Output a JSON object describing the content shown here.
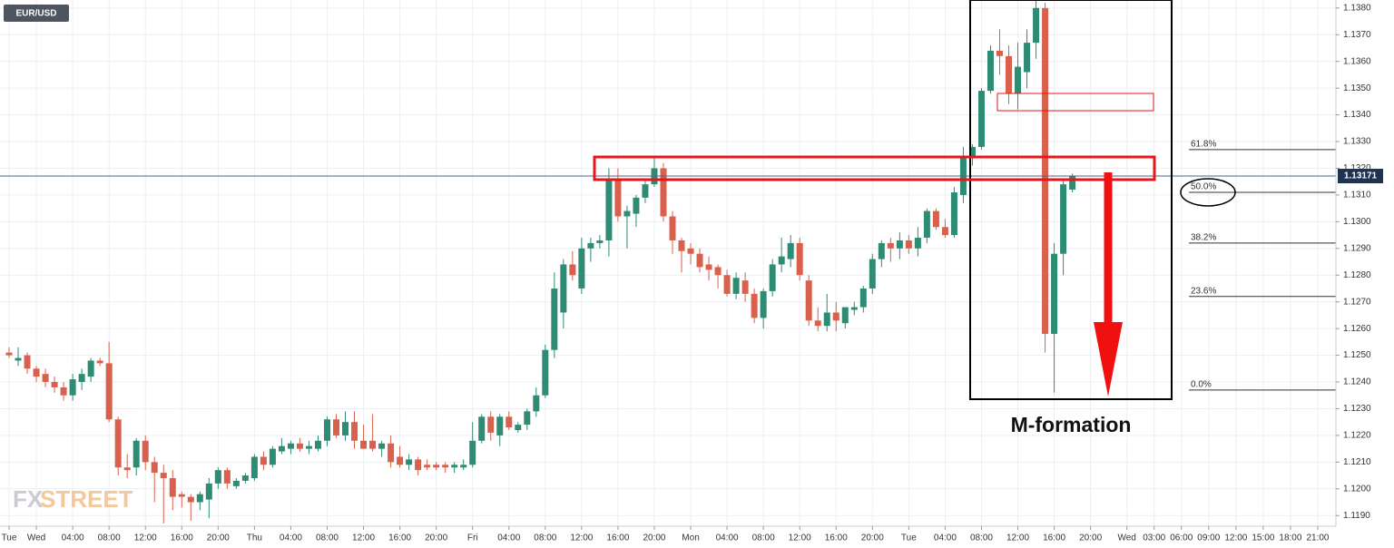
{
  "chart_data": {
    "type": "candlestick",
    "title": "EUR/USD",
    "annotation": "M-formation",
    "watermark_parts": [
      "FX",
      "STREET"
    ],
    "up_color": "#2e8b74",
    "down_color": "#d9604c",
    "grid": true,
    "x": [
      -3,
      -2,
      -1,
      0,
      1,
      2,
      3,
      4,
      5,
      6,
      7,
      8,
      9,
      10,
      11,
      12,
      13,
      14,
      15,
      16,
      17,
      18,
      19,
      20,
      21,
      22,
      23,
      24,
      25,
      26,
      27,
      28,
      29,
      30,
      31,
      32,
      33,
      34,
      35,
      36,
      37,
      38,
      39,
      40,
      41,
      42,
      43,
      44,
      45,
      46,
      47,
      48,
      49,
      50,
      51,
      52,
      53,
      54,
      55,
      56,
      57,
      58,
      59,
      60,
      61,
      62,
      63,
      64,
      65,
      66,
      67,
      68,
      69,
      70,
      71,
      72,
      73,
      74,
      75,
      76,
      77,
      78,
      79,
      80,
      81,
      82,
      83,
      84,
      85,
      86,
      87,
      88,
      89,
      90,
      91,
      92,
      93,
      94,
      95,
      96,
      97,
      98,
      99,
      100,
      101,
      102,
      103,
      104,
      105,
      106,
      107,
      108,
      109,
      110,
      111,
      112,
      113,
      114
    ],
    "open": [
      1.1251,
      1.1248,
      1.125,
      1.1245,
      1.1243,
      1.124,
      1.1238,
      1.1235,
      1.124,
      1.1242,
      1.1248,
      1.1247,
      1.1226,
      1.1208,
      1.1208,
      1.1218,
      1.121,
      1.1206,
      1.1204,
      1.1198,
      1.1197,
      1.1195,
      1.1196,
      1.1202,
      1.1207,
      1.1201,
      1.1203,
      1.1204,
      1.1212,
      1.1209,
      1.1214,
      1.1215,
      1.1217,
      1.1215,
      1.1215,
      1.1218,
      1.1226,
      1.122,
      1.1225,
      1.1218,
      1.1218,
      1.1215,
      1.1217,
      1.1212,
      1.1209,
      1.1211,
      1.1209,
      1.1209,
      1.1209,
      1.1208,
      1.1208,
      1.1209,
      1.1218,
      1.1227,
      1.122,
      1.1227,
      1.1222,
      1.1224,
      1.1229,
      1.1235,
      1.1252,
      1.1266,
      1.1284,
      1.1275,
      1.129,
      1.1292,
      1.1293,
      1.1316,
      1.1302,
      1.1303,
      1.1309,
      1.1314,
      1.132,
      1.1302,
      1.1293,
      1.129,
      1.1288,
      1.1284,
      1.1283,
      1.128,
      1.1273,
      1.1278,
      1.1273,
      1.1264,
      1.1274,
      1.1284,
      1.1286,
      1.1292,
      1.1278,
      1.1263,
      1.1261,
      1.1266,
      1.1262,
      1.1267,
      1.1268,
      1.1275,
      1.1286,
      1.1292,
      1.129,
      1.1293,
      1.129,
      1.1294,
      1.1304,
      1.1298,
      1.1295,
      1.131,
      1.1324,
      1.1328,
      1.1349,
      1.1364,
      1.1362,
      1.1348,
      1.1356,
      1.1367,
      1.138,
      1.1258,
      1.1288,
      1.1312
    ],
    "high": [
      1.1253,
      1.1253,
      1.1251,
      1.1246,
      1.1245,
      1.1242,
      1.124,
      1.1243,
      1.1245,
      1.1249,
      1.1249,
      1.1255,
      1.1227,
      1.1213,
      1.1219,
      1.122,
      1.1212,
      1.1209,
      1.1207,
      1.1199,
      1.1198,
      1.1199,
      1.1204,
      1.1208,
      1.1208,
      1.1204,
      1.1206,
      1.1213,
      1.1214,
      1.1216,
      1.1219,
      1.1218,
      1.1219,
      1.1218,
      1.122,
      1.1227,
      1.1228,
      1.1229,
      1.1229,
      1.1224,
      1.1228,
      1.1218,
      1.122,
      1.1216,
      1.1213,
      1.1212,
      1.1211,
      1.121,
      1.121,
      1.121,
      1.1211,
      1.1225,
      1.1228,
      1.1229,
      1.1228,
      1.1229,
      1.1225,
      1.123,
      1.1238,
      1.1254,
      1.1281,
      1.1286,
      1.1289,
      1.1294,
      1.1294,
      1.1295,
      1.132,
      1.132,
      1.1306,
      1.131,
      1.1316,
      1.1324,
      1.1322,
      1.1304,
      1.1294,
      1.1292,
      1.129,
      1.1287,
      1.1284,
      1.1282,
      1.1281,
      1.1281,
      1.1275,
      1.1275,
      1.1286,
      1.1294,
      1.1295,
      1.1294,
      1.128,
      1.1268,
      1.1273,
      1.127,
      1.1268,
      1.127,
      1.1276,
      1.1288,
      1.1293,
      1.1294,
      1.1296,
      1.1295,
      1.1298,
      1.1305,
      1.1305,
      1.1301,
      1.1313,
      1.1328,
      1.1329,
      1.135,
      1.1366,
      1.1372,
      1.1366,
      1.1367,
      1.1372,
      1.1383,
      1.1382,
      1.1292,
      1.1316,
      1.1318
    ],
    "low": [
      1.1249,
      1.1246,
      1.1243,
      1.124,
      1.1238,
      1.1236,
      1.1233,
      1.1233,
      1.1237,
      1.124,
      1.1246,
      1.1225,
      1.1205,
      1.1204,
      1.1205,
      1.1207,
      1.1195,
      1.1187,
      1.1192,
      1.1193,
      1.1188,
      1.1192,
      1.1189,
      1.12,
      1.12,
      1.12,
      1.1202,
      1.1203,
      1.1207,
      1.1208,
      1.1213,
      1.1213,
      1.1214,
      1.1213,
      1.1214,
      1.1216,
      1.1219,
      1.1218,
      1.1215,
      1.1215,
      1.1214,
      1.1212,
      1.1208,
      1.1208,
      1.1207,
      1.1205,
      1.1207,
      1.1207,
      1.1206,
      1.1206,
      1.1207,
      1.1208,
      1.1217,
      1.1218,
      1.1216,
      1.1222,
      1.1221,
      1.1222,
      1.1227,
      1.1234,
      1.1249,
      1.126,
      1.1278,
      1.1273,
      1.1285,
      1.129,
      1.1287,
      1.13,
      1.129,
      1.1298,
      1.1307,
      1.1313,
      1.13,
      1.1288,
      1.1281,
      1.1284,
      1.1281,
      1.1278,
      1.1275,
      1.1272,
      1.1271,
      1.127,
      1.1262,
      1.126,
      1.1272,
      1.1281,
      1.1283,
      1.1278,
      1.1261,
      1.1259,
      1.1259,
      1.1259,
      1.126,
      1.1265,
      1.1266,
      1.1273,
      1.1283,
      1.1285,
      1.1286,
      1.1288,
      1.1287,
      1.1292,
      1.1297,
      1.1294,
      1.1294,
      1.1307,
      1.1321,
      1.1327,
      1.1348,
      1.1355,
      1.1344,
      1.1342,
      1.135,
      1.1361,
      1.1251,
      1.1236,
      1.128,
      1.1311
    ],
    "close": [
      1.125,
      1.1249,
      1.1245,
      1.1242,
      1.124,
      1.1238,
      1.1235,
      1.1241,
      1.1243,
      1.1248,
      1.1247,
      1.1226,
      1.1208,
      1.1207,
      1.1218,
      1.121,
      1.1206,
      1.1204,
      1.1197,
      1.1197,
      1.1195,
      1.1198,
      1.1202,
      1.1207,
      1.1202,
      1.1203,
      1.1205,
      1.1212,
      1.1209,
      1.1215,
      1.1216,
      1.1217,
      1.1215,
      1.1216,
      1.1218,
      1.1226,
      1.122,
      1.1225,
      1.1218,
      1.1215,
      1.1215,
      1.1217,
      1.121,
      1.1209,
      1.1211,
      1.1207,
      1.1208,
      1.1208,
      1.1208,
      1.1209,
      1.1209,
      1.1218,
      1.1227,
      1.1221,
      1.1227,
      1.1223,
      1.1224,
      1.1229,
      1.1235,
      1.1252,
      1.1275,
      1.1284,
      1.128,
      1.129,
      1.1292,
      1.1293,
      1.1316,
      1.1302,
      1.1304,
      1.1309,
      1.1314,
      1.132,
      1.1302,
      1.1293,
      1.1289,
      1.1288,
      1.1283,
      1.1282,
      1.128,
      1.1273,
      1.1279,
      1.1273,
      1.1264,
      1.1274,
      1.1284,
      1.1287,
      1.1292,
      1.128,
      1.1263,
      1.1261,
      1.1266,
      1.1263,
      1.1268,
      1.1268,
      1.1275,
      1.1286,
      1.1292,
      1.129,
      1.1293,
      1.129,
      1.1294,
      1.1304,
      1.1298,
      1.1295,
      1.1311,
      1.1324,
      1.1328,
      1.1349,
      1.1364,
      1.1362,
      1.1348,
      1.1358,
      1.1367,
      1.138,
      1.1258,
      1.1288,
      1.1314,
      1.1317
    ],
    "xlim": [
      -4,
      143
    ],
    "xticks": [
      {
        "value": -3,
        "label": "Tue"
      },
      {
        "value": 0,
        "label": "Wed"
      },
      {
        "value": 4,
        "label": "04:00"
      },
      {
        "value": 8,
        "label": "08:00"
      },
      {
        "value": 12,
        "label": "12:00"
      },
      {
        "value": 16,
        "label": "16:00"
      },
      {
        "value": 20,
        "label": "20:00"
      },
      {
        "value": 24,
        "label": "Thu"
      },
      {
        "value": 28,
        "label": "04:00"
      },
      {
        "value": 32,
        "label": "08:00"
      },
      {
        "value": 36,
        "label": "12:00"
      },
      {
        "value": 40,
        "label": "16:00"
      },
      {
        "value": 44,
        "label": "20:00"
      },
      {
        "value": 48,
        "label": "Fri"
      },
      {
        "value": 52,
        "label": "04:00"
      },
      {
        "value": 56,
        "label": "08:00"
      },
      {
        "value": 60,
        "label": "12:00"
      },
      {
        "value": 64,
        "label": "16:00"
      },
      {
        "value": 68,
        "label": "20:00"
      },
      {
        "value": 72,
        "label": "Mon"
      },
      {
        "value": 76,
        "label": "04:00"
      },
      {
        "value": 80,
        "label": "08:00"
      },
      {
        "value": 84,
        "label": "12:00"
      },
      {
        "value": 88,
        "label": "16:00"
      },
      {
        "value": 92,
        "label": "20:00"
      },
      {
        "value": 96,
        "label": "Tue"
      },
      {
        "value": 100,
        "label": "04:00"
      },
      {
        "value": 104,
        "label": "08:00"
      },
      {
        "value": 108,
        "label": "12:00"
      },
      {
        "value": 112,
        "label": "16:00"
      },
      {
        "value": 116,
        "label": "20:00"
      },
      {
        "value": 120,
        "label": "Wed"
      },
      {
        "value": 123,
        "label": "03:00"
      },
      {
        "value": 126,
        "label": "06:00"
      },
      {
        "value": 129,
        "label": "09:00"
      },
      {
        "value": 132,
        "label": "12:00"
      },
      {
        "value": 135,
        "label": "15:00"
      },
      {
        "value": 138,
        "label": "18:00"
      },
      {
        "value": 141,
        "label": "21:00"
      }
    ],
    "ylim": [
      1.1186,
      1.1383
    ],
    "yticks": [
      {
        "value": 1.119,
        "label": "1.1190"
      },
      {
        "value": 1.12,
        "label": "1.1200"
      },
      {
        "value": 1.121,
        "label": "1.1210"
      },
      {
        "value": 1.122,
        "label": "1.1220"
      },
      {
        "value": 1.123,
        "label": "1.1230"
      },
      {
        "value": 1.124,
        "label": "1.1240"
      },
      {
        "value": 1.125,
        "label": "1.1250"
      },
      {
        "value": 1.126,
        "label": "1.1260"
      },
      {
        "value": 1.127,
        "label": "1.1270"
      },
      {
        "value": 1.128,
        "label": "1.1280"
      },
      {
        "value": 1.129,
        "label": "1.1290"
      },
      {
        "value": 1.13,
        "label": "1.1300"
      },
      {
        "value": 1.131,
        "label": "1.1310"
      },
      {
        "value": 1.132,
        "label": "1.1320"
      },
      {
        "value": 1.133,
        "label": "1.1330"
      },
      {
        "value": 1.134,
        "label": "1.1340"
      },
      {
        "value": 1.135,
        "label": "1.1350"
      },
      {
        "value": 1.136,
        "label": "1.1360"
      },
      {
        "value": 1.137,
        "label": "1.1370"
      },
      {
        "value": 1.138,
        "label": "1.1380"
      }
    ],
    "last_price": 1.13171,
    "fib_levels": [
      {
        "label": "61.8%",
        "value": 1.1327
      },
      {
        "label": "50.0%",
        "value": 1.1311
      },
      {
        "label": "38.2%",
        "value": 1.1292
      },
      {
        "label": "23.6%",
        "value": 1.1272
      },
      {
        "label": "0.0%",
        "value": 1.1237
      }
    ]
  }
}
